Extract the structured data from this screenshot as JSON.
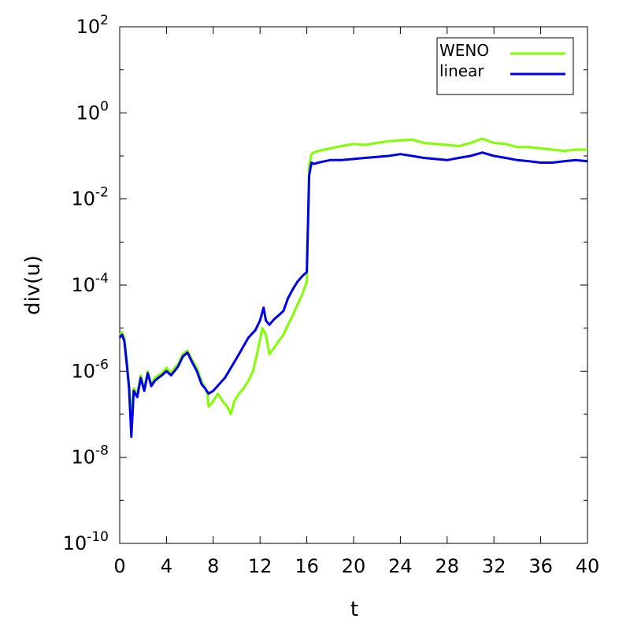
{
  "chart_data": {
    "type": "line",
    "xlabel": "t",
    "ylabel": "div(u)",
    "xlim": [
      0,
      40
    ],
    "ylim": [
      1e-10,
      100
    ],
    "yscale": "log",
    "grid": false,
    "legend_position": "top-right",
    "x_ticks": [
      {
        "value": 0,
        "label": "0"
      },
      {
        "value": 4,
        "label": "4"
      },
      {
        "value": 8,
        "label": "8"
      },
      {
        "value": 12,
        "label": "12"
      },
      {
        "value": 16,
        "label": "16"
      },
      {
        "value": 20,
        "label": "20"
      },
      {
        "value": 24,
        "label": "24"
      },
      {
        "value": 28,
        "label": "28"
      },
      {
        "value": 32,
        "label": "32"
      },
      {
        "value": 36,
        "label": "36"
      },
      {
        "value": 40,
        "label": "40"
      }
    ],
    "y_ticks": [
      {
        "value": 1e-10,
        "base": "10",
        "exp": "-10"
      },
      {
        "value": 1e-08,
        "base": "10",
        "exp": "-8"
      },
      {
        "value": 1e-06,
        "base": "10",
        "exp": "-6"
      },
      {
        "value": 0.0001,
        "base": "10",
        "exp": "-4"
      },
      {
        "value": 0.01,
        "base": "10",
        "exp": "-2"
      },
      {
        "value": 1,
        "base": "10",
        "exp": "0"
      },
      {
        "value": 100,
        "base": "10",
        "exp": "2"
      }
    ],
    "series": [
      {
        "name": "WENO",
        "color": "#80ff00",
        "x": [
          0,
          0.2,
          0.4,
          0.6,
          0.8,
          1.0,
          1.2,
          1.5,
          1.8,
          2.1,
          2.4,
          2.7,
          3.0,
          3.3,
          3.6,
          4.0,
          4.4,
          4.8,
          5.0,
          5.4,
          5.8,
          6.2,
          6.6,
          7.0,
          7.3,
          7.5,
          7.6,
          8.0,
          8.4,
          8.8,
          9.2,
          9.5,
          9.8,
          10.2,
          10.6,
          11.0,
          11.4,
          11.8,
          12.2,
          12.5,
          12.8,
          13.2,
          13.6,
          14.0,
          14.4,
          14.8,
          15.2,
          15.6,
          16.0,
          16.2,
          16.4,
          16.6,
          17.0,
          17.5,
          18.0,
          19.0,
          20.0,
          21.0,
          22.0,
          23.0,
          24.0,
          25.0,
          26.0,
          27.0,
          28.0,
          29.0,
          30.0,
          31.0,
          32.0,
          33.0,
          34.0,
          35.0,
          36.0,
          37.0,
          38.0,
          39.0,
          40.0
        ],
        "y": [
          7e-06,
          8e-06,
          6e-06,
          2e-06,
          5e-07,
          1e-07,
          4e-07,
          3e-07,
          8e-07,
          4e-07,
          1e-06,
          5e-07,
          7e-07,
          8e-07,
          9e-07,
          1.2e-06,
          9e-07,
          1.3e-06,
          1.5e-06,
          2.5e-06,
          3e-06,
          1.8e-06,
          1.2e-06,
          6e-07,
          4e-07,
          3e-07,
          1.5e-07,
          2e-07,
          3e-07,
          2e-07,
          1.5e-07,
          1e-07,
          2e-07,
          3e-07,
          4e-07,
          6e-07,
          1e-06,
          3e-06,
          1e-05,
          7e-06,
          2.5e-06,
          3.5e-06,
          5e-06,
          7e-06,
          1.2e-05,
          2e-05,
          3.5e-05,
          6e-05,
          0.00012,
          0.06,
          0.11,
          0.12,
          0.13,
          0.14,
          0.15,
          0.17,
          0.19,
          0.18,
          0.2,
          0.22,
          0.23,
          0.24,
          0.2,
          0.19,
          0.18,
          0.17,
          0.2,
          0.25,
          0.2,
          0.19,
          0.16,
          0.16,
          0.15,
          0.14,
          0.13,
          0.14,
          0.14
        ]
      },
      {
        "name": "linear",
        "color": "#0000ee",
        "x": [
          0,
          0.2,
          0.4,
          0.6,
          0.8,
          1.0,
          1.2,
          1.5,
          1.8,
          2.1,
          2.4,
          2.7,
          3.0,
          3.3,
          3.6,
          4.0,
          4.4,
          4.8,
          5.0,
          5.4,
          5.8,
          6.2,
          6.6,
          7.0,
          7.3,
          7.6,
          8.0,
          9.0,
          10.0,
          11.0,
          11.6,
          12.0,
          12.3,
          12.5,
          12.8,
          13.2,
          13.6,
          14.0,
          14.4,
          14.8,
          15.2,
          15.6,
          16.0,
          16.2,
          16.4,
          16.6,
          17.0,
          17.5,
          18.0,
          19.0,
          20.0,
          21.0,
          22.0,
          23.0,
          24.0,
          25.0,
          26.0,
          27.0,
          28.0,
          29.0,
          30.0,
          31.0,
          32.0,
          33.0,
          34.0,
          35.0,
          36.0,
          37.0,
          38.0,
          39.0,
          40.0
        ],
        "y": [
          6e-06,
          7e-06,
          5e-06,
          1.5e-06,
          4e-07,
          3e-08,
          3.5e-07,
          2.5e-07,
          7e-07,
          3.5e-07,
          9e-07,
          4.5e-07,
          6e-07,
          7e-07,
          8e-07,
          1e-06,
          8e-07,
          1.1e-06,
          1.3e-06,
          2.2e-06,
          2.7e-06,
          1.6e-06,
          1e-06,
          5e-07,
          4e-07,
          3e-07,
          3.5e-07,
          7e-07,
          2e-06,
          6e-06,
          9e-06,
          1.5e-05,
          3e-05,
          1.5e-05,
          1.2e-05,
          1.6e-05,
          2e-05,
          2.5e-05,
          5e-05,
          8e-05,
          0.00012,
          0.00016,
          0.0002,
          0.035,
          0.07,
          0.065,
          0.07,
          0.075,
          0.08,
          0.08,
          0.085,
          0.09,
          0.095,
          0.1,
          0.11,
          0.1,
          0.09,
          0.085,
          0.08,
          0.09,
          0.1,
          0.12,
          0.1,
          0.09,
          0.08,
          0.075,
          0.07,
          0.07,
          0.075,
          0.08,
          0.075
        ]
      }
    ]
  }
}
